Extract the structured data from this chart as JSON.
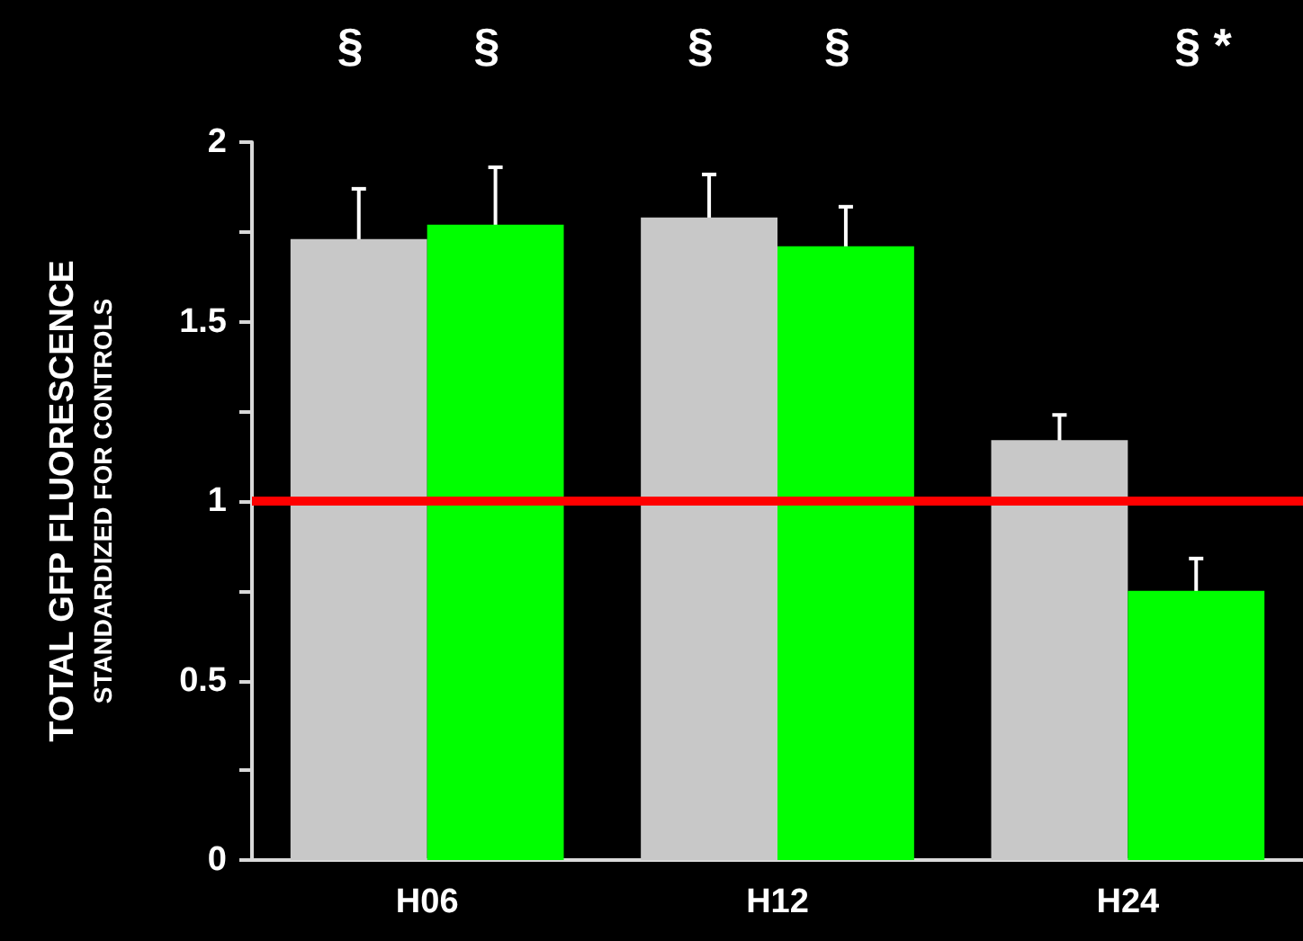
{
  "chart_data": {
    "type": "bar",
    "ylabel": "TOTAL GFP FLUORESCENCE\nSTANDARDIZED FOR CONTROLS",
    "categories": [
      "H06",
      "H12",
      "H24"
    ],
    "series": [
      {
        "color": "#c8c8c8",
        "values": [
          1.73,
          1.79,
          1.17
        ],
        "errors": [
          0.14,
          0.12,
          0.07
        ]
      },
      {
        "color": "#00ff00",
        "values": [
          1.77,
          1.71,
          0.75
        ],
        "errors": [
          0.16,
          0.11,
          0.09
        ]
      }
    ],
    "ylim": [
      0,
      2
    ],
    "yticks": [
      0,
      {
        "value": 0.25,
        "label": null
      },
      0.5,
      {
        "value": 0.75,
        "label": null
      },
      1,
      {
        "value": 1.25,
        "label": null
      },
      1.5,
      {
        "value": 1.75,
        "label": null
      },
      2
    ],
    "ref_lines": [
      {
        "axis": "y",
        "value": 1,
        "color": "#ff0000"
      }
    ],
    "annotations": [
      "§",
      "§",
      "§",
      "§",
      "§ *"
    ],
    "grid": false
  }
}
